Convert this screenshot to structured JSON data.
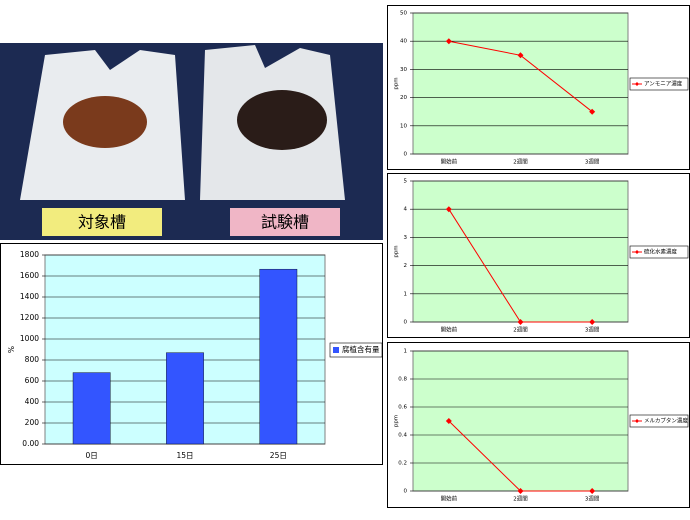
{
  "photo": {
    "labels": [
      "対象槽",
      "試験槽"
    ]
  },
  "chart_data": [
    {
      "type": "bar",
      "y_label": "%",
      "categories": [
        "0日",
        "15日",
        "25日"
      ],
      "series": [
        {
          "name": "腐植含有量",
          "color": "#3355ff",
          "values": [
            680,
            870,
            1665
          ]
        }
      ],
      "ylim": [
        0,
        1800
      ],
      "yticks": [
        {
          "value": 0,
          "label": "0.00"
        },
        200,
        400,
        600,
        800,
        1000,
        1200,
        1400,
        1600,
        1800
      ],
      "grid": true,
      "legend": "right"
    },
    {
      "type": "line",
      "y_label": "ppm",
      "categories": [
        "開始前",
        "2週間",
        "3週間"
      ],
      "series": [
        {
          "name": "アンモニア濃度",
          "color": "#ff0000",
          "values": [
            40,
            35,
            15
          ]
        }
      ],
      "ylim": [
        0,
        50
      ],
      "yticks": [
        0,
        10,
        20,
        30,
        40,
        50
      ],
      "grid": true,
      "legend": "right"
    },
    {
      "type": "line",
      "y_label": "ppm",
      "categories": [
        "開始前",
        "2週間",
        "3週間"
      ],
      "series": [
        {
          "name": "硫化水素濃度",
          "color": "#ff0000",
          "values": [
            4,
            0,
            0
          ]
        }
      ],
      "ylim": [
        0,
        5
      ],
      "yticks": [
        0,
        1,
        2,
        3,
        4,
        5
      ],
      "grid": true,
      "legend": "right"
    },
    {
      "type": "line",
      "y_label": "ppm",
      "categories": [
        "開始前",
        "2週間",
        "3週間"
      ],
      "series": [
        {
          "name": "メルカプタン濃度",
          "color": "#ff0000",
          "values": [
            0.5,
            0,
            0
          ]
        }
      ],
      "ylim": [
        0,
        1
      ],
      "yticks": [
        0,
        0.2,
        0.4,
        0.6,
        0.8,
        1
      ],
      "grid": true,
      "legend": "right"
    }
  ]
}
